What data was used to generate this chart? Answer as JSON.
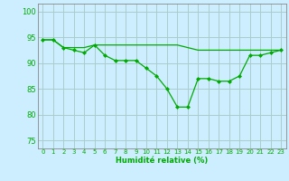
{
  "line1_x": [
    0,
    1,
    2,
    3,
    4,
    5,
    6,
    7,
    8,
    9,
    10,
    11,
    12,
    13,
    14,
    15,
    16,
    17,
    18,
    19,
    20,
    21,
    22,
    23
  ],
  "line1_y": [
    94.5,
    94.5,
    93.0,
    93.0,
    93.0,
    93.5,
    93.5,
    93.5,
    93.5,
    93.5,
    93.5,
    93.5,
    93.5,
    93.5,
    93.0,
    92.5,
    92.5,
    92.5,
    92.5,
    92.5,
    92.5,
    92.5,
    92.5,
    92.5
  ],
  "line2_x": [
    0,
    1,
    2,
    3,
    4,
    5,
    6,
    7,
    8,
    9,
    10,
    11,
    12,
    13,
    14,
    15,
    16,
    17,
    18,
    19,
    20,
    21,
    22,
    23
  ],
  "line2_y": [
    94.5,
    94.5,
    93.0,
    92.5,
    92.0,
    93.5,
    91.5,
    90.5,
    90.5,
    90.5,
    89.0,
    87.5,
    85.0,
    81.5,
    81.5,
    87.0,
    87.0,
    86.5,
    86.5,
    87.5,
    91.5,
    91.5,
    92.0,
    92.5
  ],
  "line_color": "#00aa00",
  "bg_color": "#cceeff",
  "grid_color": "#aacccc",
  "xlabel": "Humidité relative (%)",
  "ylim": [
    73.5,
    101.5
  ],
  "xlim": [
    -0.5,
    23.5
  ],
  "yticks": [
    75,
    80,
    85,
    90,
    95,
    100
  ],
  "xticks": [
    0,
    1,
    2,
    3,
    4,
    5,
    6,
    7,
    8,
    9,
    10,
    11,
    12,
    13,
    14,
    15,
    16,
    17,
    18,
    19,
    20,
    21,
    22,
    23
  ]
}
